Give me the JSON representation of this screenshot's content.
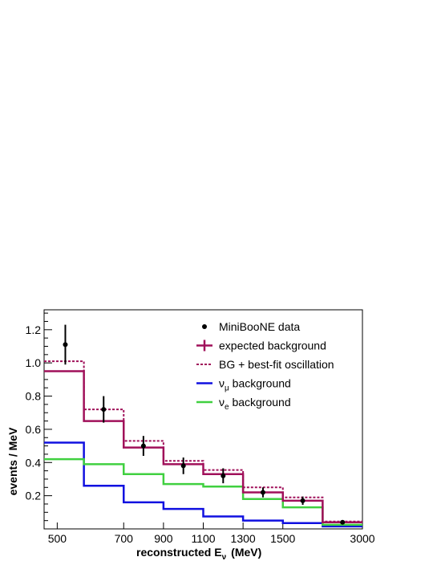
{
  "chart_data": {
    "type": "line",
    "title": "",
    "xlabel": "reconstructed E",
    "xlabel_subscript": "ν",
    "xlabel_unit": "(MeV)",
    "ylabel": "events / MeV",
    "x_tick_labels": [
      "500",
      "700",
      "900",
      "1100",
      "1300",
      "1500",
      "3000"
    ],
    "y_tick_labels": [
      "0.2",
      "0.4",
      "0.6",
      "0.8",
      "1.0",
      "1.2"
    ],
    "ylim": [
      0,
      1.32
    ],
    "grid": false,
    "legend_position": "top-right",
    "bin_edges_mev": [
      475,
      550,
      675,
      800,
      950,
      1100,
      1300,
      1500,
      3000
    ],
    "data": {
      "name": "MiniBooNE data",
      "x": [
        515,
        612,
        737,
        875,
        1025,
        1200,
        1400,
        2250
      ],
      "y": [
        1.11,
        0.72,
        0.5,
        0.38,
        0.32,
        0.22,
        0.17,
        0.04
      ],
      "err": [
        0.12,
        0.08,
        0.06,
        0.05,
        0.045,
        0.03,
        0.025,
        0.008
      ],
      "color": "#000000"
    },
    "series": [
      {
        "name": "expected background",
        "values": [
          0.95,
          0.65,
          0.49,
          0.39,
          0.33,
          0.22,
          0.17,
          0.04
        ],
        "color": "#a0105a",
        "style": "solid"
      },
      {
        "name": "BG + best-fit oscillation",
        "values": [
          1.01,
          0.72,
          0.53,
          0.41,
          0.355,
          0.25,
          0.19,
          0.045
        ],
        "color": "#a0105a",
        "style": "dotted"
      },
      {
        "name": "ν",
        "legend_sub": "μ",
        "legend_suffix": " background",
        "values": [
          0.52,
          0.26,
          0.16,
          0.12,
          0.075,
          0.05,
          0.035,
          0.015
        ],
        "color": "#1010e0",
        "style": "solid"
      },
      {
        "name": "ν",
        "legend_sub": "e",
        "legend_suffix": " background",
        "values": [
          0.42,
          0.39,
          0.33,
          0.27,
          0.255,
          0.18,
          0.13,
          0.025
        ],
        "color": "#40d040",
        "style": "solid"
      }
    ]
  }
}
